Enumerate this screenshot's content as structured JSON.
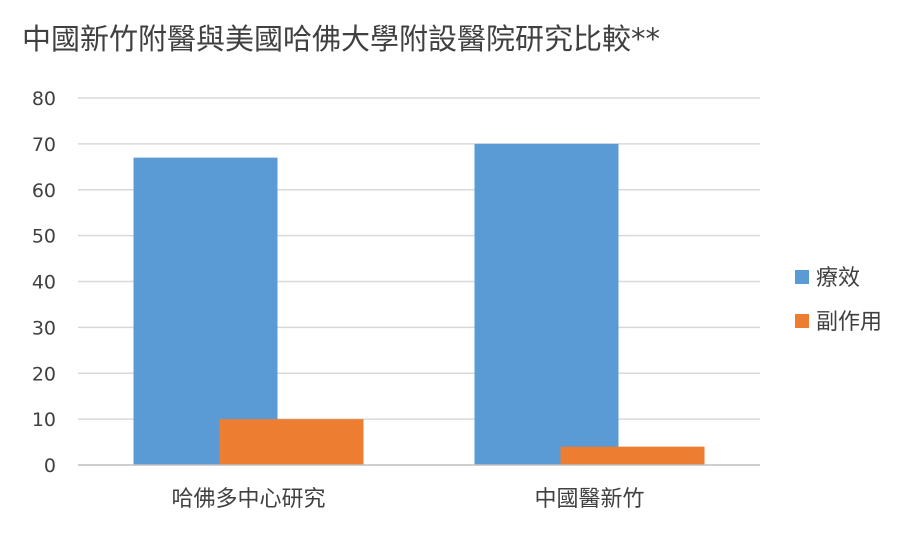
{
  "chart_data": {
    "type": "bar",
    "title": "中國新竹附醫與美國哈佛大學附設醫院研究比較**",
    "categories": [
      "哈佛多中心研究",
      "中國醫新竹"
    ],
    "series": [
      {
        "name": "療效",
        "values": [
          67,
          70
        ],
        "color": "#5B9BD5"
      },
      {
        "name": "副作用",
        "values": [
          10,
          4
        ],
        "color": "#ED7D31"
      }
    ],
    "ylim": [
      0,
      80
    ],
    "yticks": [
      0,
      10,
      20,
      30,
      40,
      50,
      60,
      70,
      80
    ],
    "grid": true,
    "legend": "right"
  }
}
